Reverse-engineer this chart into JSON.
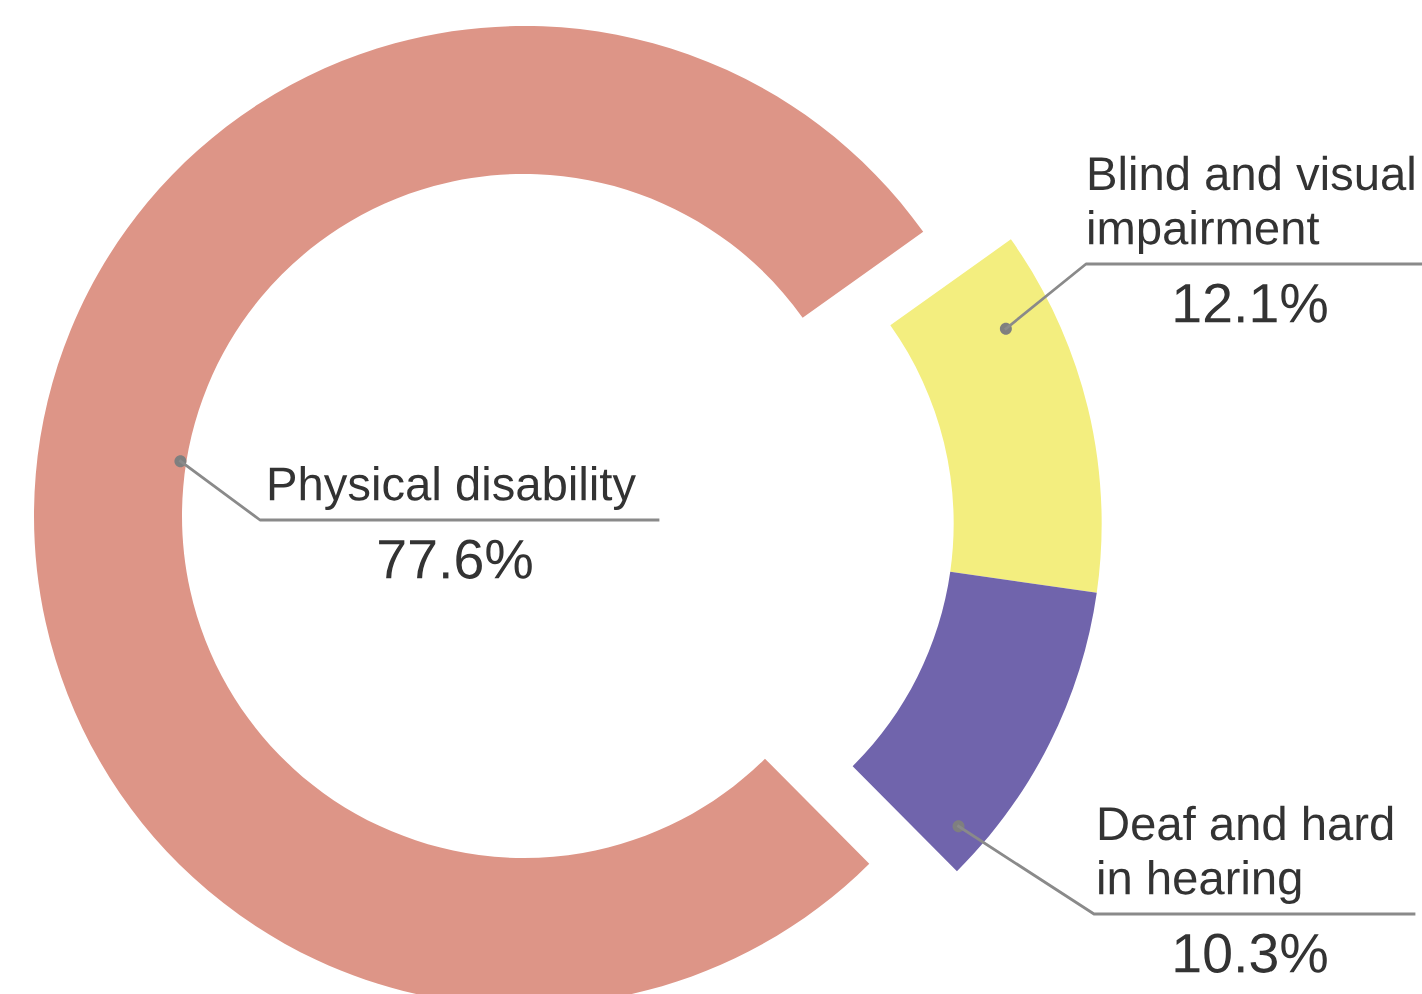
{
  "chart_data": {
    "type": "donut",
    "categories": [
      "Physical disability",
      "Blind and visual\nimpairment",
      "Deaf and hard\nin hearing"
    ],
    "values": [
      77.6,
      12.1,
      10.3
    ],
    "colors": [
      "#dd9587",
      "#f3ee7f",
      "#7064ac"
    ],
    "value_labels": [
      "77.6%",
      "12.1%",
      "10.3%"
    ]
  }
}
